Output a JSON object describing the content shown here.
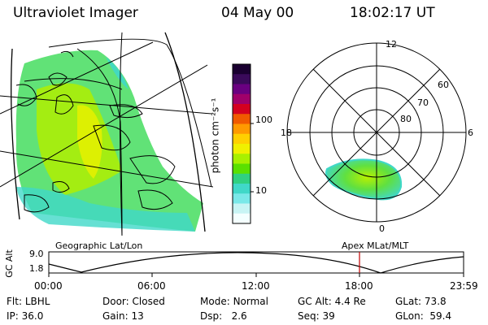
{
  "header": {
    "instrument": "Ultraviolet Imager",
    "date": "04 May 00",
    "time": "18:02:17 UT"
  },
  "colorbar": {
    "unit_label": "photon cm⁻²s⁻¹",
    "ticks": [
      "100",
      "10"
    ],
    "colors": [
      "#1a0030",
      "#3a0a5a",
      "#6a0080",
      "#a0006a",
      "#d40020",
      "#f05a00",
      "#ff9a00",
      "#ffd000",
      "#f0f000",
      "#a8f000",
      "#5ae000",
      "#30d080",
      "#40d8c8",
      "#7ae8e8",
      "#c8f4f4",
      "#f4ffff"
    ]
  },
  "polar": {
    "mlt_labels": {
      "top": "12",
      "left": "18",
      "right": "6",
      "bottom": "0"
    },
    "lat_labels": [
      "60",
      "70",
      "80"
    ]
  },
  "altitude_plot": {
    "ylabel": "GC Alt",
    "yticks": [
      "9.0",
      "1.8"
    ],
    "left_caption": "Geographic Lat/Lon",
    "right_caption": "Apex MLat/MLT",
    "xticks": [
      "00:00",
      "06:00",
      "12:00",
      "18:00",
      "23:59"
    ],
    "current_time_marker_hours": 18.04,
    "marker_color": "#c00000"
  },
  "status": {
    "row1": [
      {
        "label": "Flt:",
        "value": "LBHL"
      },
      {
        "label": "Door:",
        "value": "Closed"
      },
      {
        "label": "Mode:",
        "value": "Normal"
      },
      {
        "label": "GC Alt:",
        "value": "4.4 Re"
      },
      {
        "label": "GLat:",
        "value": "73.8"
      }
    ],
    "row2": [
      {
        "label": "IP:",
        "value": "36.0"
      },
      {
        "label": "Gain:",
        "value": "13"
      },
      {
        "label": "Dsp:",
        "value": "2.6"
      },
      {
        "label": "Seq:",
        "value": "39"
      },
      {
        "label": "GLon:",
        "value": "59.4"
      }
    ]
  }
}
